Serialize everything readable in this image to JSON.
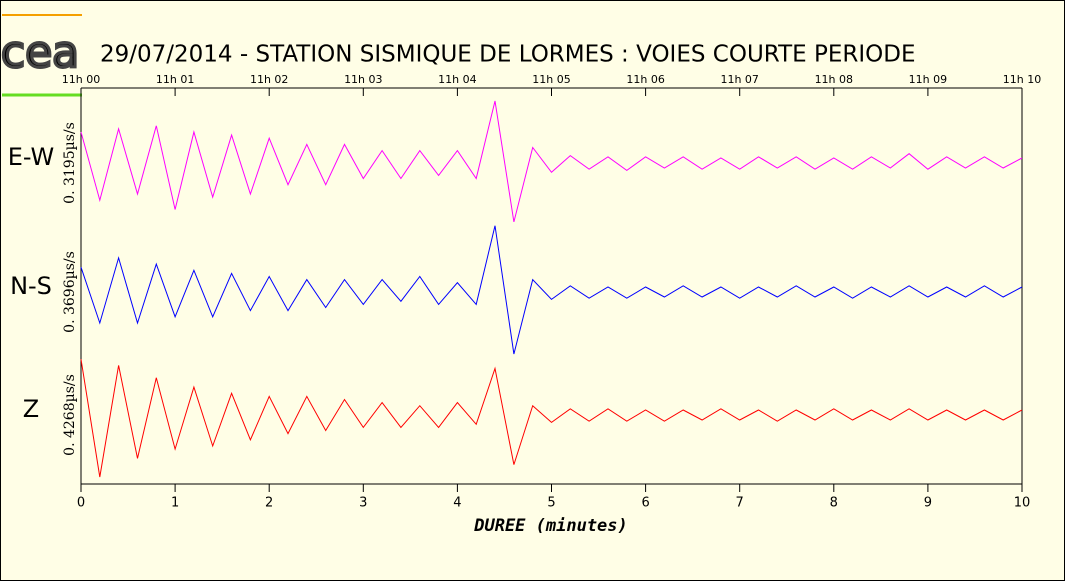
{
  "chart_data": {
    "type": "line",
    "logo": "cea",
    "title": "29/07/2014  -  STATION SISMIQUE DE LORMES : VOIES COURTE PERIODE",
    "xlabel": "DUREE (minutes)",
    "xlim": [
      0,
      10
    ],
    "xticks": [
      0,
      1,
      2,
      3,
      4,
      5,
      6,
      7,
      8,
      9,
      10
    ],
    "top_ticks": [
      {
        "value": 0,
        "label": "11h 00"
      },
      {
        "value": 1,
        "label": "11h 01"
      },
      {
        "value": 2,
        "label": "11h 02"
      },
      {
        "value": 3,
        "label": "11h 03"
      },
      {
        "value": 4,
        "label": "11h 04"
      },
      {
        "value": 5,
        "label": "11h 05"
      },
      {
        "value": 6,
        "label": "11h 06"
      },
      {
        "value": 7,
        "label": "11h 07"
      },
      {
        "value": 8,
        "label": "11h 08"
      },
      {
        "value": 9,
        "label": "11h 09"
      },
      {
        "value": 10,
        "label": "11h 10"
      }
    ],
    "ylim": [
      -1,
      1
    ],
    "x": [
      0,
      0.2,
      0.4,
      0.6,
      0.8,
      1,
      1.2,
      1.4,
      1.6,
      1.8,
      2,
      2.2,
      2.4,
      2.6,
      2.8,
      3,
      3.2,
      3.4,
      3.6,
      3.8,
      4,
      4.2,
      4.4,
      4.6,
      4.8,
      5,
      5.2,
      5.4,
      5.6,
      5.8,
      6,
      6.2,
      6.4,
      6.6,
      6.8,
      7,
      7.2,
      7.4,
      7.6,
      7.8,
      8,
      8.2,
      8.4,
      8.6,
      8.8,
      9,
      9.2,
      9.4,
      9.6,
      9.8,
      10
    ],
    "series": [
      {
        "name": "E-W",
        "scale_label": "0. 3195µs/s",
        "color": "#ff00ff",
        "values": [
          0.5,
          -0.6,
          0.55,
          -0.5,
          0.6,
          -0.75,
          0.5,
          -0.55,
          0.45,
          -0.5,
          0.4,
          -0.35,
          0.3,
          -0.35,
          0.3,
          -0.25,
          0.2,
          -0.25,
          0.2,
          -0.2,
          0.2,
          -0.25,
          1.0,
          -0.95,
          0.25,
          -0.15,
          0.12,
          -0.1,
          0.1,
          -0.12,
          0.1,
          -0.08,
          0.1,
          -0.1,
          0.08,
          -0.1,
          0.1,
          -0.08,
          0.1,
          -0.1,
          0.08,
          -0.1,
          0.1,
          -0.08,
          0.15,
          -0.1,
          0.1,
          -0.08,
          0.1,
          -0.08,
          0.08
        ]
      },
      {
        "name": "N-S",
        "scale_label": "0. 3696µs/s",
        "color": "#0000ff",
        "values": [
          0.4,
          -0.5,
          0.55,
          -0.5,
          0.45,
          -0.4,
          0.35,
          -0.4,
          0.3,
          -0.3,
          0.25,
          -0.3,
          0.2,
          -0.25,
          0.2,
          -0.2,
          0.2,
          -0.15,
          0.25,
          -0.2,
          0.15,
          -0.2,
          1.07,
          -1.0,
          0.2,
          -0.12,
          0.1,
          -0.1,
          0.08,
          -0.1,
          0.08,
          -0.08,
          0.1,
          -0.08,
          0.08,
          -0.1,
          0.08,
          -0.08,
          0.1,
          -0.08,
          0.08,
          -0.1,
          0.08,
          -0.08,
          0.1,
          -0.08,
          0.08,
          -0.08,
          0.1,
          -0.08,
          0.08
        ]
      },
      {
        "name": "Z",
        "scale_label": "0. 4268µs/s",
        "color": "#ff0000",
        "values": [
          0.9,
          -1.0,
          0.8,
          -0.7,
          0.6,
          -0.55,
          0.45,
          -0.5,
          0.35,
          -0.4,
          0.3,
          -0.3,
          0.3,
          -0.25,
          0.25,
          -0.2,
          0.2,
          -0.2,
          0.15,
          -0.2,
          0.2,
          -0.15,
          0.75,
          -0.8,
          0.15,
          -0.12,
          0.1,
          -0.1,
          0.1,
          -0.1,
          0.08,
          -0.1,
          0.08,
          -0.08,
          0.1,
          -0.08,
          0.08,
          -0.1,
          0.08,
          -0.08,
          0.1,
          -0.08,
          0.08,
          -0.08,
          0.1,
          -0.08,
          0.08,
          -0.08,
          0.08,
          -0.08,
          0.08
        ]
      }
    ]
  }
}
